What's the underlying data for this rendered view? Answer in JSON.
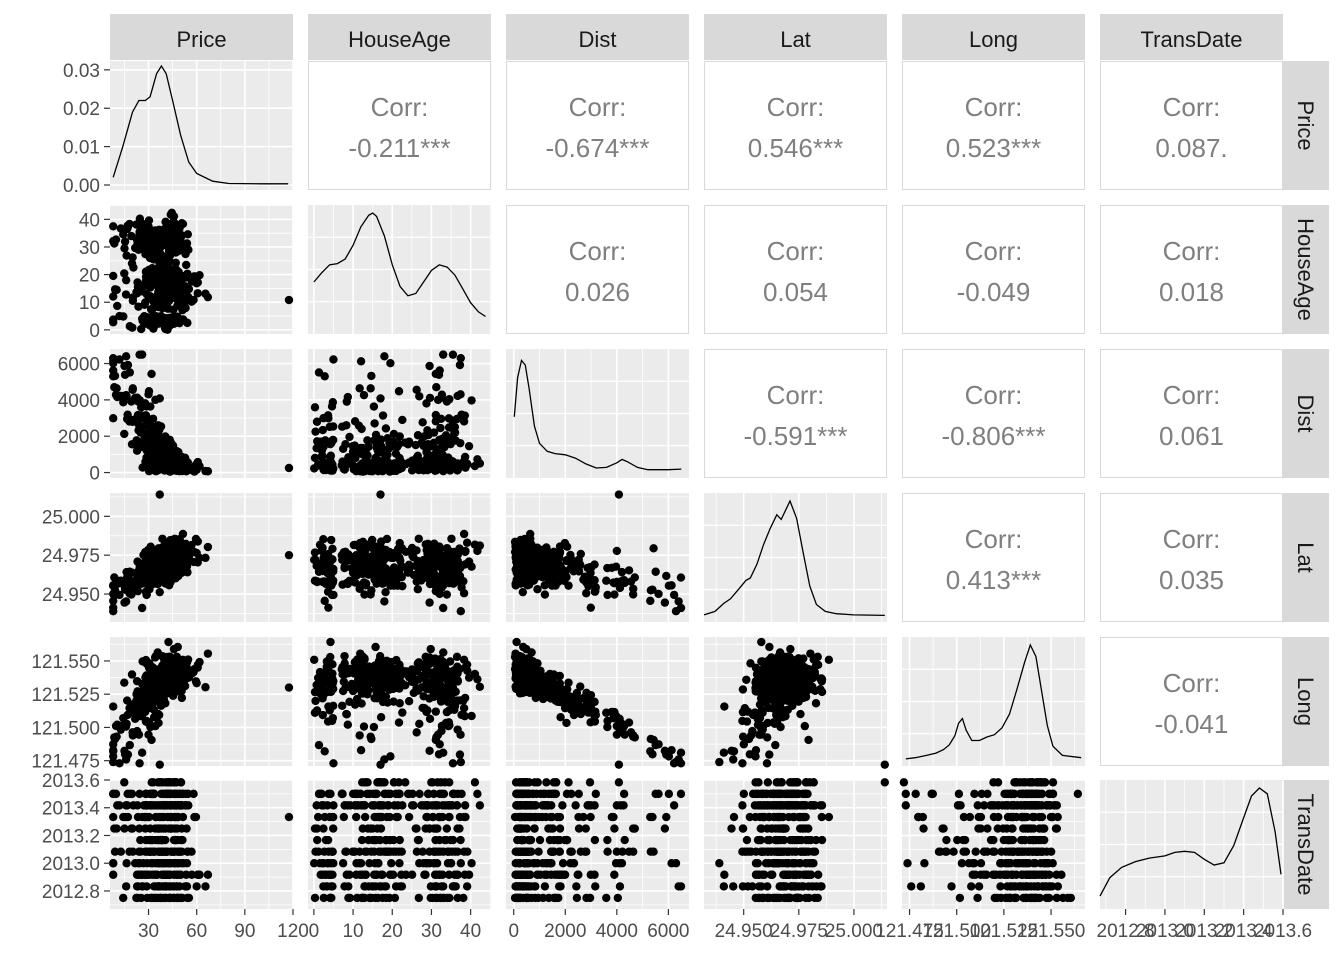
{
  "chart_data": {
    "type": "scatter-matrix",
    "variables": [
      "Price",
      "HouseAge",
      "Dist",
      "Lat",
      "Long",
      "TransDate"
    ],
    "colors": {
      "panel": "#ebebeb",
      "grid": "#ffffff",
      "strip": "#d9d9d9",
      "text": "#4d4d4d",
      "corr_text": "#7f7f7f",
      "point": "#000000"
    },
    "axes": {
      "Price": {
        "range": [
          6,
          120
        ],
        "ticks": [
          "30",
          "60",
          "90",
          "120"
        ]
      },
      "HouseAge": {
        "range": [
          -1.5,
          45.2
        ],
        "ticks": [
          "0",
          "10",
          "20",
          "30",
          "40"
        ]
      },
      "Dist": {
        "range": [
          -300,
          6800
        ],
        "ticks": [
          "0",
          "2000",
          "4000",
          "6000"
        ]
      },
      "Lat": {
        "range": [
          24.932,
          25.015
        ],
        "ticks": [
          "24.950",
          "24.975",
          "25.000"
        ]
      },
      "Long": {
        "range": [
          121.471,
          121.568
        ],
        "ticks": [
          "121.475",
          "121.500",
          "121.525",
          "121.550"
        ]
      },
      "TransDate": {
        "range": [
          2012.67,
          2013.6
        ],
        "ticks": [
          "2012.8",
          "2013.0",
          "2013.2",
          "2013.4",
          "2013.6"
        ]
      }
    },
    "x_tick_labels": {
      "Price": [
        "30",
        "60",
        "90",
        "120"
      ],
      "HouseAge": [
        "0",
        "10",
        "20",
        "30",
        "40"
      ],
      "Dist": [
        "0",
        "2000",
        "4000",
        "6000"
      ],
      "Lat": [
        "24.950",
        "24.975",
        "25.000"
      ],
      "Long": [
        "121.475",
        "121.500",
        "121.525",
        "121.550"
      ],
      "TransDate": [
        "2012.8",
        "2013.0",
        "2013.2",
        "2013.4",
        "2013.6"
      ]
    },
    "y_tick_labels": {
      "Price": [
        "0.00",
        "0.01",
        "0.02",
        "0.03"
      ],
      "HouseAge": [
        "0",
        "10",
        "20",
        "30",
        "40"
      ],
      "Dist": [
        "0",
        "2000",
        "4000",
        "6000"
      ],
      "Lat": [
        "24.950",
        "24.975",
        "25.000"
      ],
      "Long": [
        "121.475",
        "121.500",
        "121.525",
        "121.550"
      ],
      "TransDate": [
        "2012.8",
        "2013.0",
        "2013.2",
        "2013.4",
        "2013.6"
      ]
    },
    "price_density_axis": {
      "range": [
        0,
        0.031
      ],
      "ticks": [
        0,
        0.01,
        0.02,
        0.03
      ]
    },
    "correlations": [
      {
        "row": "Price",
        "col": "HouseAge",
        "label": "Corr:",
        "value": "-0.211***"
      },
      {
        "row": "Price",
        "col": "Dist",
        "label": "Corr:",
        "value": "-0.674***"
      },
      {
        "row": "Price",
        "col": "Lat",
        "label": "Corr:",
        "value": "0.546***"
      },
      {
        "row": "Price",
        "col": "Long",
        "label": "Corr:",
        "value": "0.523***"
      },
      {
        "row": "Price",
        "col": "TransDate",
        "label": "Corr:",
        "value": "0.087."
      },
      {
        "row": "HouseAge",
        "col": "Dist",
        "label": "Corr:",
        "value": "0.026"
      },
      {
        "row": "HouseAge",
        "col": "Lat",
        "label": "Corr:",
        "value": "0.054"
      },
      {
        "row": "HouseAge",
        "col": "Long",
        "label": "Corr:",
        "value": "-0.049"
      },
      {
        "row": "HouseAge",
        "col": "TransDate",
        "label": "Corr:",
        "value": "0.018"
      },
      {
        "row": "Dist",
        "col": "Lat",
        "label": "Corr:",
        "value": "-0.591***"
      },
      {
        "row": "Dist",
        "col": "Long",
        "label": "Corr:",
        "value": "-0.806***"
      },
      {
        "row": "Dist",
        "col": "TransDate",
        "label": "Corr:",
        "value": "0.061"
      },
      {
        "row": "Lat",
        "col": "Long",
        "label": "Corr:",
        "value": "0.413***"
      },
      {
        "row": "Lat",
        "col": "TransDate",
        "label": "Corr:",
        "value": "0.035"
      },
      {
        "row": "Long",
        "col": "TransDate",
        "label": "Corr:",
        "value": "-0.041"
      }
    ],
    "densities": {
      "Price": [
        [
          8,
          0.002
        ],
        [
          14,
          0.01
        ],
        [
          20,
          0.019
        ],
        [
          24,
          0.022
        ],
        [
          28,
          0.022
        ],
        [
          31,
          0.023
        ],
        [
          35,
          0.029
        ],
        [
          38,
          0.031
        ],
        [
          41,
          0.029
        ],
        [
          45,
          0.022
        ],
        [
          50,
          0.013
        ],
        [
          55,
          0.006
        ],
        [
          60,
          0.003
        ],
        [
          70,
          0.001
        ],
        [
          80,
          0.0004
        ],
        [
          100,
          0.0003
        ],
        [
          117,
          0.0003
        ]
      ],
      "HouseAge": [
        [
          0,
          0.4
        ],
        [
          2,
          0.48
        ],
        [
          4,
          0.55
        ],
        [
          6,
          0.56
        ],
        [
          8,
          0.6
        ],
        [
          10,
          0.72
        ],
        [
          12,
          0.88
        ],
        [
          14,
          0.98
        ],
        [
          15,
          1.0
        ],
        [
          16,
          0.97
        ],
        [
          18,
          0.8
        ],
        [
          20,
          0.55
        ],
        [
          22,
          0.36
        ],
        [
          24,
          0.28
        ],
        [
          26,
          0.3
        ],
        [
          28,
          0.4
        ],
        [
          30,
          0.5
        ],
        [
          32,
          0.55
        ],
        [
          34,
          0.53
        ],
        [
          36,
          0.46
        ],
        [
          38,
          0.34
        ],
        [
          40,
          0.22
        ],
        [
          42,
          0.14
        ],
        [
          43.8,
          0.1
        ]
      ],
      "Dist": [
        [
          23,
          0.48
        ],
        [
          150,
          0.82
        ],
        [
          300,
          0.97
        ],
        [
          450,
          0.93
        ],
        [
          600,
          0.72
        ],
        [
          800,
          0.4
        ],
        [
          1000,
          0.25
        ],
        [
          1300,
          0.18
        ],
        [
          1600,
          0.16
        ],
        [
          2000,
          0.15
        ],
        [
          2400,
          0.12
        ],
        [
          2800,
          0.07
        ],
        [
          3200,
          0.035
        ],
        [
          3600,
          0.04
        ],
        [
          4000,
          0.08
        ],
        [
          4200,
          0.11
        ],
        [
          4400,
          0.09
        ],
        [
          4800,
          0.04
        ],
        [
          5200,
          0.02
        ],
        [
          6000,
          0.02
        ],
        [
          6500,
          0.025
        ]
      ],
      "Lat": [
        [
          24.932,
          0.01
        ],
        [
          24.937,
          0.04
        ],
        [
          24.941,
          0.11
        ],
        [
          24.944,
          0.15
        ],
        [
          24.948,
          0.24
        ],
        [
          24.951,
          0.31
        ],
        [
          24.953,
          0.33
        ],
        [
          24.956,
          0.45
        ],
        [
          24.959,
          0.62
        ],
        [
          24.962,
          0.76
        ],
        [
          24.965,
          0.88
        ],
        [
          24.967,
          0.84
        ],
        [
          24.969,
          0.92
        ],
        [
          24.971,
          1.0
        ],
        [
          24.974,
          0.85
        ],
        [
          24.977,
          0.55
        ],
        [
          24.98,
          0.26
        ],
        [
          24.983,
          0.1
        ],
        [
          24.987,
          0.04
        ],
        [
          24.992,
          0.02
        ],
        [
          25.0,
          0.01
        ],
        [
          25.014,
          0.005
        ]
      ],
      "Long": [
        [
          121.473,
          0.01
        ],
        [
          121.478,
          0.02
        ],
        [
          121.484,
          0.04
        ],
        [
          121.489,
          0.06
        ],
        [
          121.493,
          0.09
        ],
        [
          121.496,
          0.13
        ],
        [
          121.499,
          0.21
        ],
        [
          121.501,
          0.32
        ],
        [
          121.503,
          0.36
        ],
        [
          121.505,
          0.26
        ],
        [
          121.508,
          0.17
        ],
        [
          121.512,
          0.17
        ],
        [
          121.516,
          0.2
        ],
        [
          121.52,
          0.22
        ],
        [
          121.524,
          0.28
        ],
        [
          121.528,
          0.4
        ],
        [
          121.532,
          0.62
        ],
        [
          121.536,
          0.85
        ],
        [
          121.539,
          1.0
        ],
        [
          121.542,
          0.9
        ],
        [
          121.545,
          0.6
        ],
        [
          121.548,
          0.3
        ],
        [
          121.551,
          0.12
        ],
        [
          121.556,
          0.04
        ],
        [
          121.566,
          0.02
        ]
      ],
      "TransDate": [
        [
          2012.67,
          0.06
        ],
        [
          2012.72,
          0.22
        ],
        [
          2012.78,
          0.31
        ],
        [
          2012.85,
          0.36
        ],
        [
          2012.92,
          0.39
        ],
        [
          2013.0,
          0.41
        ],
        [
          2013.05,
          0.44
        ],
        [
          2013.1,
          0.45
        ],
        [
          2013.15,
          0.44
        ],
        [
          2013.2,
          0.38
        ],
        [
          2013.25,
          0.33
        ],
        [
          2013.3,
          0.35
        ],
        [
          2013.35,
          0.5
        ],
        [
          2013.4,
          0.74
        ],
        [
          2013.44,
          0.93
        ],
        [
          2013.48,
          1.0
        ],
        [
          2013.52,
          0.95
        ],
        [
          2013.56,
          0.62
        ],
        [
          2013.59,
          0.25
        ]
      ]
    }
  }
}
